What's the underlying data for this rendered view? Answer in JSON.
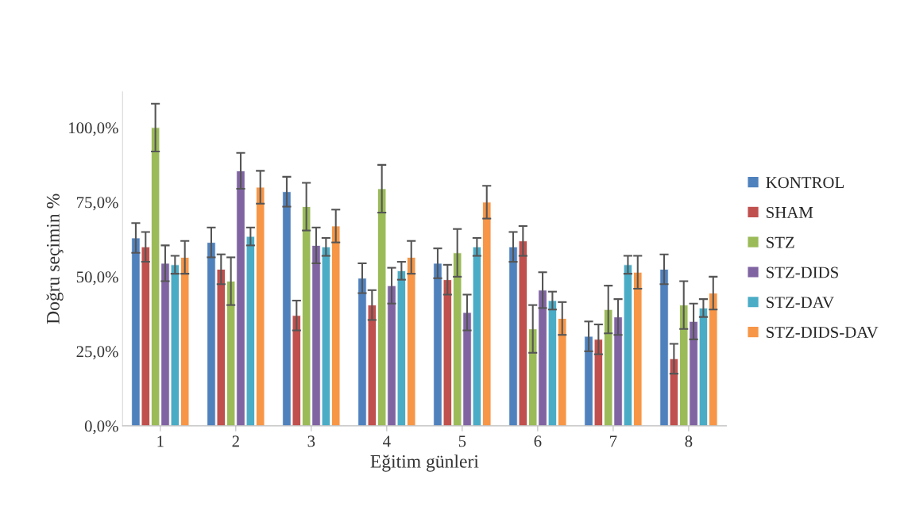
{
  "chart_data": {
    "type": "bar",
    "xlabel": "Eğitim günleri",
    "ylabel": "Doğru seçimin %",
    "categories": [
      "1",
      "2",
      "3",
      "4",
      "5",
      "6",
      "7",
      "8"
    ],
    "series": [
      {
        "name": "KONTROL",
        "color": "#4f81bd",
        "values": [
          63,
          61.5,
          78.5,
          49.5,
          54.5,
          60,
          30,
          52.5
        ],
        "errors": [
          5,
          5,
          5,
          5,
          5,
          5,
          5,
          5
        ]
      },
      {
        "name": "SHAM",
        "color": "#c0504d",
        "values": [
          60,
          52.5,
          37,
          40.5,
          49,
          62,
          29,
          22.5
        ],
        "errors": [
          5,
          5,
          5,
          5,
          5,
          5,
          5,
          5
        ]
      },
      {
        "name": "STZ",
        "color": "#9bbb59",
        "values": [
          100,
          48.5,
          73.5,
          79.5,
          58,
          32.5,
          39,
          40.5
        ],
        "errors": [
          8,
          8,
          8,
          8,
          8,
          8,
          8,
          8
        ]
      },
      {
        "name": "STZ-DIDS",
        "color": "#8064a2",
        "values": [
          54.5,
          85.5,
          60.5,
          47,
          38,
          45.5,
          36.5,
          35
        ],
        "errors": [
          6,
          6,
          6,
          6,
          6,
          6,
          6,
          6
        ]
      },
      {
        "name": "STZ-DAV",
        "color": "#4bacc6",
        "values": [
          54,
          63.5,
          60,
          52,
          60,
          42,
          54,
          39.5
        ],
        "errors": [
          3,
          3,
          3,
          3,
          3,
          3,
          3,
          3
        ]
      },
      {
        "name": "STZ-DIDS-DAV",
        "color": "#f79646",
        "values": [
          56.5,
          80,
          67,
          56.5,
          75,
          36,
          51.5,
          44.5
        ],
        "errors": [
          5.5,
          5.5,
          5.5,
          5.5,
          5.5,
          5.5,
          5.5,
          5.5
        ]
      }
    ],
    "ylim": [
      0,
      112
    ],
    "yticks": [
      {
        "value": 0,
        "label": "0,0%"
      },
      {
        "value": 25,
        "label": "25,0%"
      },
      {
        "value": 50,
        "label": "50,0%"
      },
      {
        "value": 75,
        "label": "75,0%"
      },
      {
        "value": 100,
        "label": "100,0%"
      }
    ],
    "grid": false,
    "legend": "right"
  }
}
